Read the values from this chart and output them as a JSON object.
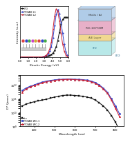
{
  "top_left": {
    "xlabel": "Kinetic Energy (eV)",
    "ylabel": "Intensity (a.u.)",
    "xlim": [
      0.0,
      6.0
    ],
    "ylim": [
      0.0,
      1.05
    ],
    "xticks": [
      0.0,
      1.0,
      2.0,
      3.0,
      4.0,
      5.0,
      6.0
    ],
    "xtick_labels": [
      "0.0",
      "1.0",
      "2.0",
      "3.0",
      "4.0",
      "5.0",
      "6.0"
    ],
    "series": [
      {
        "label": "ITO",
        "color": "#111111",
        "marker": "s",
        "x": [
          0.0,
          0.3,
          0.6,
          0.9,
          1.2,
          1.5,
          1.8,
          2.1,
          2.4,
          2.7,
          3.0,
          3.3,
          3.5,
          3.7,
          3.9,
          4.1,
          4.3,
          4.5,
          4.7,
          4.9,
          5.1,
          5.3,
          5.5,
          5.7,
          5.9
        ],
        "y": [
          0.01,
          0.01,
          0.01,
          0.01,
          0.01,
          0.01,
          0.01,
          0.01,
          0.01,
          0.01,
          0.01,
          0.02,
          0.03,
          0.04,
          0.06,
          0.09,
          0.14,
          0.22,
          0.35,
          0.52,
          0.68,
          0.78,
          0.82,
          0.83,
          0.82
        ]
      },
      {
        "label": "ITO/AIE L1",
        "color": "#3344cc",
        "marker": "o",
        "x": [
          0.0,
          0.3,
          0.6,
          0.9,
          1.2,
          1.5,
          1.8,
          2.1,
          2.4,
          2.7,
          3.0,
          3.3,
          3.5,
          3.7,
          3.9,
          4.1,
          4.3,
          4.5,
          4.7,
          4.9,
          5.1,
          5.3,
          5.5,
          5.7,
          5.9
        ],
        "y": [
          0.01,
          0.01,
          0.01,
          0.01,
          0.01,
          0.01,
          0.01,
          0.01,
          0.01,
          0.01,
          0.02,
          0.04,
          0.07,
          0.13,
          0.22,
          0.4,
          0.65,
          0.88,
          0.98,
          0.9,
          0.72,
          0.5,
          0.28,
          0.12,
          0.04
        ]
      },
      {
        "label": "ITO/AIE L2",
        "color": "#cc2233",
        "marker": "^",
        "x": [
          0.0,
          0.3,
          0.6,
          0.9,
          1.2,
          1.5,
          1.8,
          2.1,
          2.4,
          2.7,
          3.0,
          3.3,
          3.5,
          3.7,
          3.9,
          4.1,
          4.3,
          4.5,
          4.7,
          4.9,
          5.1,
          5.3,
          5.5,
          5.7,
          5.9
        ],
        "y": [
          0.01,
          0.01,
          0.01,
          0.01,
          0.01,
          0.01,
          0.01,
          0.01,
          0.01,
          0.01,
          0.02,
          0.05,
          0.1,
          0.18,
          0.32,
          0.58,
          0.85,
          1.0,
          0.95,
          0.75,
          0.5,
          0.28,
          0.13,
          0.05,
          0.02
        ]
      }
    ],
    "inset_mol_colors": [
      "#dd4444",
      "#3344cc",
      "#44aa44",
      "#cc44cc",
      "#ccaa33",
      "#dd4444",
      "#3344cc",
      "#44aa44"
    ],
    "inset_bg": "#d8eef8"
  },
  "top_right": {
    "layers": [
      {
        "label": "MoOx / Al",
        "color": "#b0cce8",
        "text_color": "#333333",
        "height": 0.18
      },
      {
        "label": "PCE-10:PCBM",
        "color": "#e8b0c8",
        "text_color": "#333333",
        "height": 0.22
      },
      {
        "label": "AIE Layer",
        "color": "#f0d890",
        "text_color": "#555533",
        "height": 0.1
      },
      {
        "label": "ITO",
        "color": "#b8e8e8",
        "text_color": "#226688",
        "height": 0.22
      }
    ],
    "ito_label": "ITO",
    "bg_color": "#ffffff"
  },
  "bottom": {
    "xlabel": "Wavelength (nm)",
    "ylabel": "D* (Jones)",
    "xlim": [
      330,
      840
    ],
    "ylim": [
      1000000000.0,
      5000000000000.0
    ],
    "xticks": [
      400,
      500,
      600,
      700,
      800
    ],
    "series": [
      {
        "label": "ito",
        "color": "#111111",
        "marker": "s",
        "x": [
          340,
          360,
          380,
          400,
          420,
          440,
          460,
          480,
          500,
          520,
          540,
          560,
          580,
          600,
          620,
          640,
          660,
          680,
          700,
          720,
          740,
          760,
          780,
          800,
          820
        ],
        "y": [
          30000000000.0,
          40000000000.0,
          50000000000.0,
          60000000000.0,
          70000000000.0,
          80000000000.0,
          90000000000.0,
          110000000000.0,
          130000000000.0,
          150000000000.0,
          170000000000.0,
          180000000000.0,
          180000000000.0,
          170000000000.0,
          160000000000.0,
          150000000000.0,
          130000000000.0,
          110000000000.0,
          80000000000.0,
          50000000000.0,
          30000000000.0,
          15000000000.0,
          6000000000.0,
          2000000000.0,
          500000000.0
        ]
      },
      {
        "label": "ITO/AIE WC-1",
        "color": "#3344cc",
        "marker": "o",
        "x": [
          340,
          360,
          380,
          400,
          420,
          440,
          460,
          480,
          500,
          520,
          540,
          560,
          580,
          600,
          620,
          640,
          660,
          680,
          700,
          720,
          740,
          760,
          780,
          800,
          820
        ],
        "y": [
          400000000000.0,
          600000000000.0,
          800000000000.0,
          1000000000000.0,
          1300000000000.0,
          1600000000000.0,
          1900000000000.0,
          2100000000000.0,
          2300000000000.0,
          2500000000000.0,
          2600000000000.0,
          2700000000000.0,
          2700000000000.0,
          2600000000000.0,
          2500000000000.0,
          2400000000000.0,
          2200000000000.0,
          1900000000000.0,
          1500000000000.0,
          1000000000000.0,
          600000000000.0,
          300000000000.0,
          100000000000.0,
          30000000000.0,
          8000000000.0
        ]
      },
      {
        "label": "ITO/AIE WC-2",
        "color": "#cc2233",
        "marker": "^",
        "x": [
          340,
          360,
          380,
          400,
          420,
          440,
          460,
          480,
          500,
          520,
          540,
          560,
          580,
          600,
          620,
          640,
          660,
          680,
          700,
          720,
          740,
          760,
          780,
          800,
          820
        ],
        "y": [
          300000000000.0,
          500000000000.0,
          700000000000.0,
          900000000000.0,
          1100000000000.0,
          1400000000000.0,
          1700000000000.0,
          1900000000000.0,
          2100000000000.0,
          2300000000000.0,
          2400000000000.0,
          2500000000000.0,
          2500000000000.0,
          2400000000000.0,
          2300000000000.0,
          2200000000000.0,
          2000000000000.0,
          1700000000000.0,
          1300000000000.0,
          900000000000.0,
          500000000000.0,
          250000000000.0,
          80000000000.0,
          20000000000.0,
          5000000000.0
        ]
      }
    ]
  },
  "bg_color": "#ffffff"
}
